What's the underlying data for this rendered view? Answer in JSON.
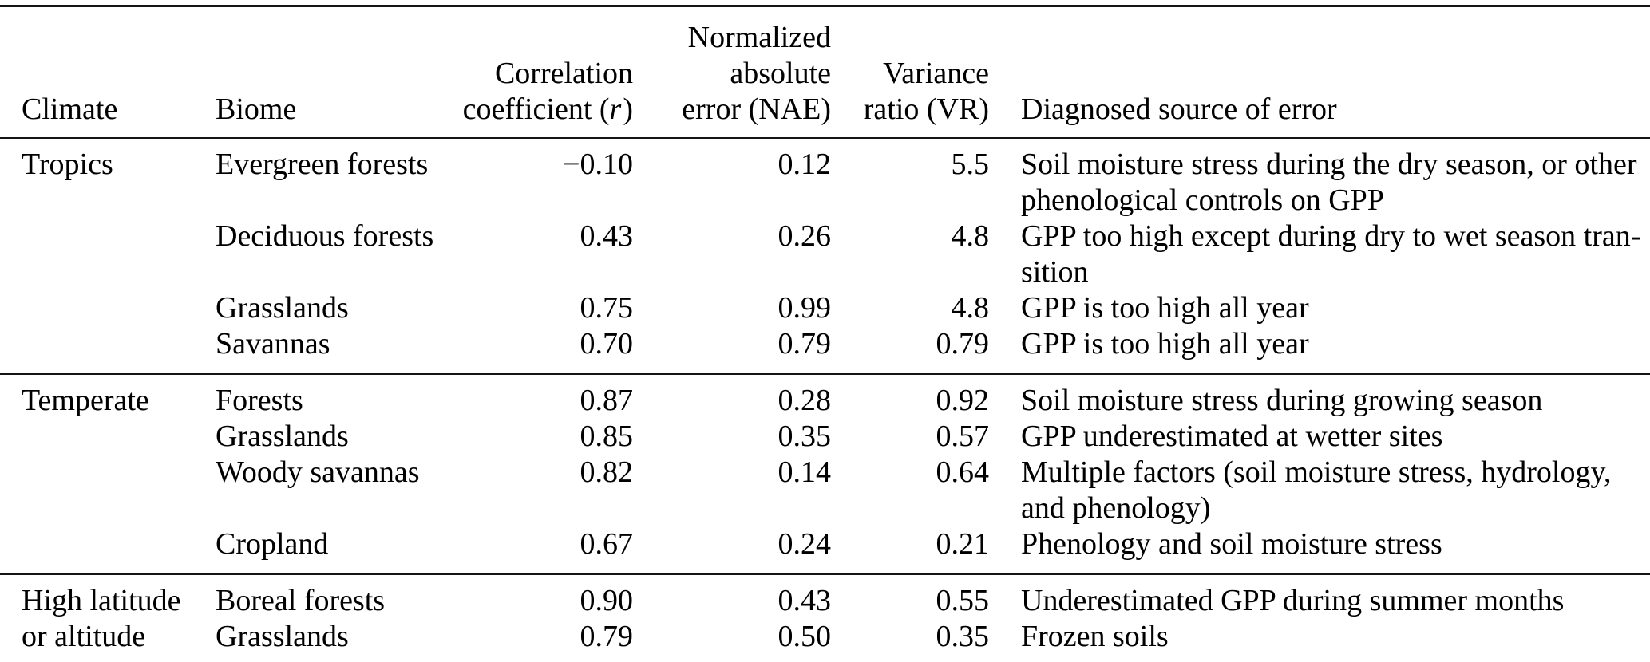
{
  "table": {
    "headers": {
      "climate": "Climate",
      "biome": "Biome",
      "correlation": {
        "line1": "Correlation",
        "line2_pre": "coefficient (",
        "line2_var": "r",
        "line2_post": ")"
      },
      "nae": "Normalized\nabsolute\nerror (NAE)",
      "vr": "Variance\nratio (VR)",
      "source": "Diagnosed source of error"
    },
    "sections": [
      {
        "rows": [
          {
            "climate": "Tropics",
            "biome": "Evergreen forests",
            "r": "−0.10",
            "nae": "0.12",
            "vr": "5.5",
            "source": "Soil moisture stress during the dry season, or other\nphenological controls on GPP"
          },
          {
            "climate": "",
            "biome": "Deciduous forests",
            "r": "0.43",
            "nae": "0.26",
            "vr": "4.8",
            "source": "GPP too high except during dry to wet season tran-\nsition"
          },
          {
            "climate": "",
            "biome": "Grasslands",
            "r": "0.75",
            "nae": "0.99",
            "vr": "4.8",
            "source": "GPP is too high all year"
          },
          {
            "climate": "",
            "biome": "Savannas",
            "r": "0.70",
            "nae": "0.79",
            "vr": "0.79",
            "source": "GPP is too high all year"
          }
        ]
      },
      {
        "rows": [
          {
            "climate": "Temperate",
            "biome": "Forests",
            "r": "0.87",
            "nae": "0.28",
            "vr": "0.92",
            "source": "Soil moisture stress during growing season"
          },
          {
            "climate": "",
            "biome": "Grasslands",
            "r": "0.85",
            "nae": "0.35",
            "vr": "0.57",
            "source": "GPP underestimated at wetter sites"
          },
          {
            "climate": "",
            "biome": "Woody savannas",
            "r": "0.82",
            "nae": "0.14",
            "vr": "0.64",
            "source": "Multiple factors (soil moisture stress, hydrology,\nand phenology)"
          },
          {
            "climate": "",
            "biome": "Cropland",
            "r": "0.67",
            "nae": "0.24",
            "vr": "0.21",
            "source": "Phenology and soil moisture stress"
          }
        ]
      },
      {
        "rows": [
          {
            "climate": "High latitude",
            "biome": "Boreal forests",
            "r": "0.90",
            "nae": "0.43",
            "vr": "0.55",
            "source": "Underestimated GPP during summer months"
          },
          {
            "climate": "or altitude",
            "biome": "Grasslands",
            "r": "0.79",
            "nae": "0.50",
            "vr": "0.35",
            "source": "Frozen soils"
          }
        ]
      }
    ]
  }
}
